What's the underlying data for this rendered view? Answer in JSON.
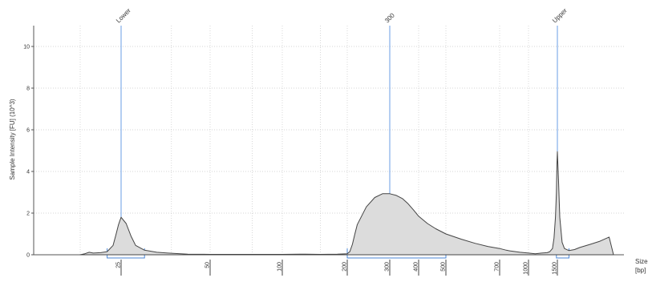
{
  "chart_data": {
    "type": "area",
    "ylabel": "Sample Intensity [FU] (10^3)",
    "xlabel_line1": "Size",
    "xlabel_line2": "[bp]",
    "ylim": [
      0,
      11
    ],
    "y_ticks": [
      0,
      2,
      4,
      6,
      8,
      10
    ],
    "x_scale": "ladder",
    "x_ticks": [
      {
        "label": "25",
        "bp": 25
      },
      {
        "label": "50",
        "bp": 50
      },
      {
        "label": "100",
        "bp": 100
      },
      {
        "label": "200",
        "bp": 200
      },
      {
        "label": "300",
        "bp": 300
      },
      {
        "label": "400",
        "bp": 400
      },
      {
        "label": "500",
        "bp": 500
      },
      {
        "label": "700",
        "bp": 700
      },
      {
        "label": "1000",
        "bp": 1000
      },
      {
        "label": "1500",
        "bp": 1500
      }
    ],
    "markers": [
      {
        "label": "Lower",
        "bp": 25
      },
      {
        "label": "300",
        "bp": 300
      },
      {
        "label": "Upper",
        "bp": 1500
      }
    ],
    "regions": [
      {
        "from_bp": 20,
        "to_bp": 30
      },
      {
        "from_bp": 200,
        "to_bp": 500
      },
      {
        "from_bp": 1480,
        "to_bp": 1600
      }
    ],
    "grid": true,
    "series": [
      {
        "x": [
          13,
          14,
          15,
          16,
          18,
          20,
          22,
          23,
          24,
          25,
          26,
          27,
          28,
          30,
          33,
          36,
          42,
          50,
          60,
          80,
          100,
          120,
          150,
          180,
          200,
          205,
          210,
          215,
          220,
          240,
          260,
          280,
          300,
          320,
          340,
          360,
          380,
          400,
          430,
          460,
          500,
          550,
          600,
          650,
          700,
          760,
          800,
          900,
          1000,
          1100,
          1200,
          1300,
          1350,
          1400,
          1430,
          1460,
          1480,
          1490,
          1500,
          1510,
          1520,
          1540,
          1560,
          1600,
          1650,
          1700,
          1800,
          1900,
          2000,
          2050
        ],
        "y": [
          0,
          0.05,
          0.12,
          0.08,
          0.1,
          0.15,
          0.45,
          0.95,
          1.45,
          1.8,
          1.5,
          0.9,
          0.45,
          0.22,
          0.12,
          0.08,
          0.03,
          0.02,
          0.02,
          0.02,
          0.02,
          0.03,
          0.02,
          0.03,
          0.05,
          0.15,
          0.5,
          1.0,
          1.45,
          2.3,
          2.75,
          2.93,
          2.93,
          2.85,
          2.7,
          2.45,
          2.15,
          1.85,
          1.5,
          1.25,
          1.0,
          0.75,
          0.55,
          0.4,
          0.3,
          0.22,
          0.18,
          0.12,
          0.08,
          0.05,
          0.08,
          0.1,
          0.15,
          0.3,
          0.8,
          1.8,
          3.0,
          4.3,
          4.95,
          3.5,
          1.8,
          0.6,
          0.3,
          0.2,
          0.25,
          0.35,
          0.5,
          0.65,
          0.85,
          0.0
        ]
      }
    ]
  }
}
